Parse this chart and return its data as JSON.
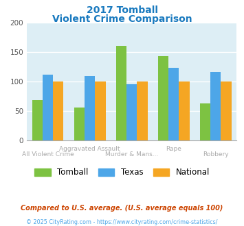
{
  "title_line1": "2017 Tomball",
  "title_line2": "Violent Crime Comparison",
  "title_color": "#1a7abf",
  "cat_labels_top": [
    "",
    "Aggravated Assault",
    "",
    ""
  ],
  "cat_labels_bot": [
    "All Violent Crime",
    "Murder & Mans...",
    "Rape",
    "Robbery"
  ],
  "tomball": [
    68,
    55,
    160,
    143,
    62
  ],
  "texas": [
    112,
    109,
    95,
    123,
    116
  ],
  "national": [
    100,
    100,
    100,
    100,
    100
  ],
  "tomball_color": "#7dc242",
  "texas_color": "#4da6e8",
  "national_color": "#f5a623",
  "ylim": [
    0,
    200
  ],
  "yticks": [
    0,
    50,
    100,
    150,
    200
  ],
  "bg_color": "#ddeef5",
  "footnote1": "Compared to U.S. average. (U.S. average equals 100)",
  "footnote2": "© 2025 CityRating.com - https://www.cityrating.com/crime-statistics/",
  "footnote1_color": "#cc4400",
  "footnote2_color": "#4da6e8"
}
